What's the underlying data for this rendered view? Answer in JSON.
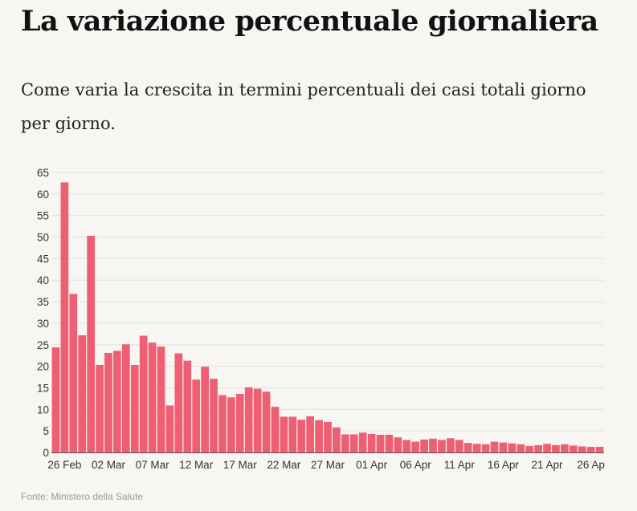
{
  "header": {
    "title": "La variazione percentuale giornaliera",
    "subtitle": "Come varia la crescita in termini percentuali dei casi totali giorno per giorno."
  },
  "footer": {
    "source": "Fonte: Ministero della Salute"
  },
  "colors": {
    "bar": "#ef5f73",
    "grid": "#e2e0da",
    "axis": "#555555"
  },
  "chart_data": {
    "type": "bar",
    "title": "",
    "xlabel": "",
    "ylabel": "",
    "ylim": [
      0,
      65
    ],
    "y_ticks": [
      0,
      5,
      10,
      15,
      20,
      25,
      30,
      35,
      40,
      45,
      50,
      55,
      60,
      65
    ],
    "grid": true,
    "legend": "none",
    "x_tick_labels": [
      "26 Feb",
      "02 Mar",
      "07 Mar",
      "12 Mar",
      "17 Mar",
      "22 Mar",
      "27 Mar",
      "01 Apr",
      "06 Apr",
      "11 Apr",
      "16 Apr",
      "21 Apr",
      "26 Ap"
    ],
    "categories": [
      "2020-02-25",
      "2020-02-26",
      "2020-02-27",
      "2020-02-28",
      "2020-02-29",
      "2020-03-01",
      "2020-03-02",
      "2020-03-03",
      "2020-03-04",
      "2020-03-05",
      "2020-03-06",
      "2020-03-07",
      "2020-03-08",
      "2020-03-09",
      "2020-03-10",
      "2020-03-11",
      "2020-03-12",
      "2020-03-13",
      "2020-03-14",
      "2020-03-15",
      "2020-03-16",
      "2020-03-17",
      "2020-03-18",
      "2020-03-19",
      "2020-03-20",
      "2020-03-21",
      "2020-03-22",
      "2020-03-23",
      "2020-03-24",
      "2020-03-25",
      "2020-03-26",
      "2020-03-27",
      "2020-03-28",
      "2020-03-29",
      "2020-03-30",
      "2020-03-31",
      "2020-04-01",
      "2020-04-02",
      "2020-04-03",
      "2020-04-04",
      "2020-04-05",
      "2020-04-06",
      "2020-04-07",
      "2020-04-08",
      "2020-04-09",
      "2020-04-10",
      "2020-04-11",
      "2020-04-12",
      "2020-04-13",
      "2020-04-14",
      "2020-04-15",
      "2020-04-16",
      "2020-04-17",
      "2020-04-18",
      "2020-04-19",
      "2020-04-20",
      "2020-04-21",
      "2020-04-22",
      "2020-04-23",
      "2020-04-24",
      "2020-04-25",
      "2020-04-26",
      "2020-04-27"
    ],
    "values": [
      24.4,
      62.7,
      36.8,
      27.2,
      50.3,
      20.3,
      23.1,
      23.6,
      25.1,
      20.3,
      27.1,
      25.5,
      24.6,
      10.9,
      23.0,
      21.3,
      16.9,
      19.9,
      17.1,
      13.3,
      12.8,
      13.6,
      15.1,
      14.8,
      14.1,
      10.6,
      8.3,
      8.3,
      7.6,
      8.4,
      7.5,
      7.1,
      5.8,
      4.2,
      4.2,
      4.6,
      4.3,
      4.1,
      4.1,
      3.5,
      2.9,
      2.5,
      3.0,
      3.2,
      2.9,
      3.3,
      2.9,
      2.2,
      2.0,
      1.9,
      2.5,
      2.3,
      2.1,
      1.9,
      1.5,
      1.7,
      2.0,
      1.7,
      1.9,
      1.6,
      1.4,
      1.3,
      1.3
    ]
  }
}
